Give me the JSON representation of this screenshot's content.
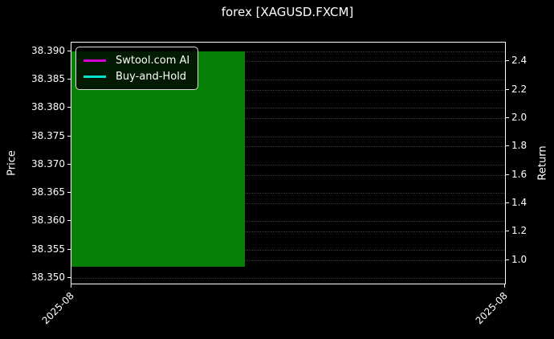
{
  "figure": {
    "background": "#000000",
    "text_color": "#ffffff"
  },
  "chart_data": {
    "type": "candlestick",
    "title": "forex [XAGUSD.FXCM]",
    "xlabel": "",
    "x_tick_labels": [
      "2025-08",
      "2025-08"
    ],
    "x_tick_fracs": [
      0,
      1
    ],
    "left_axis": {
      "label": "Price",
      "tick_labels": [
        "38.390",
        "38.385",
        "38.380",
        "38.375",
        "38.370",
        "38.365",
        "38.360",
        "38.355",
        "38.350"
      ],
      "tick_values": [
        38.39,
        38.385,
        38.38,
        38.375,
        38.37,
        38.365,
        38.36,
        38.355,
        38.35
      ],
      "view_range": [
        38.349,
        38.3915
      ]
    },
    "right_axis": {
      "label": "Return",
      "tick_labels": [
        "2.4",
        "2.2",
        "2.0",
        "1.8",
        "1.6",
        "1.4",
        "1.2",
        "1.0"
      ],
      "tick_values": [
        2.4,
        2.2,
        2.0,
        1.8,
        1.6,
        1.4,
        1.2,
        1.0
      ],
      "view_range": [
        0.833,
        2.532
      ]
    },
    "candles": [
      {
        "x": "2025-08",
        "low": 38.352,
        "high": 38.39,
        "open": 38.352,
        "close": 38.39,
        "direction": "up",
        "color": "#088008",
        "x_span_frac": [
          0.0,
          0.4
        ]
      }
    ],
    "legend": {
      "position": "upper-left",
      "entries": [
        {
          "name": "Swtool.com AI",
          "color": "#d500d5"
        },
        {
          "name": "Buy-and-Hold",
          "color": "#00e1d2"
        }
      ]
    },
    "grid": {
      "visible": true,
      "line_style": "dotted",
      "color": "#3a3a3a"
    }
  }
}
